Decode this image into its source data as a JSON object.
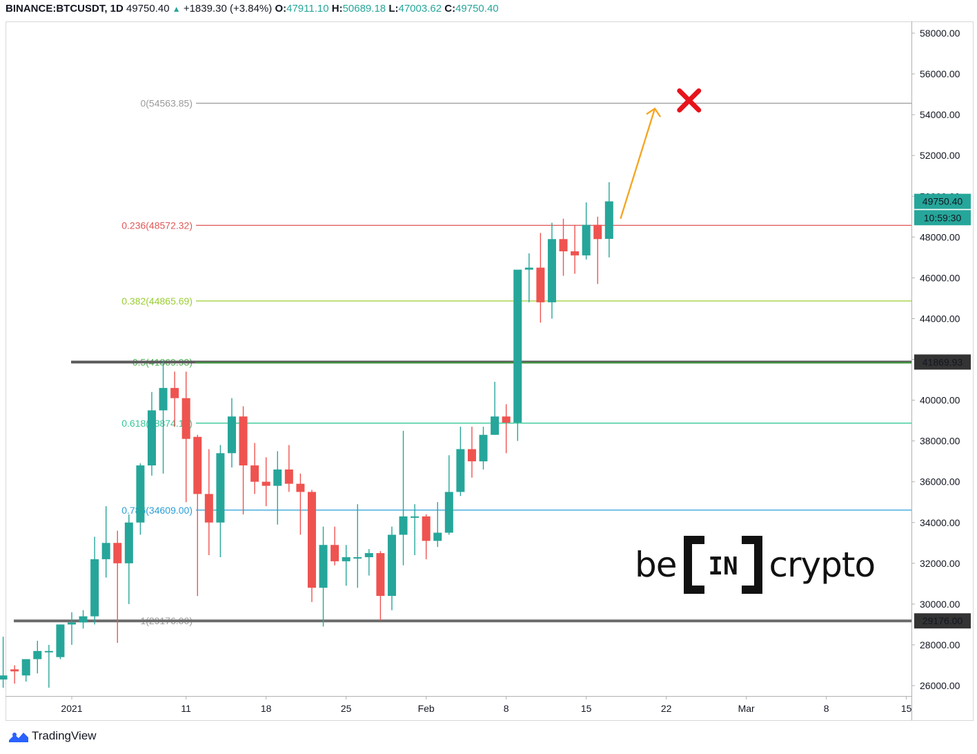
{
  "header": {
    "symbol": "BINANCE:BTCUSDT, 1D",
    "last": "49750.40",
    "change": "+1839.30 (+3.84%)",
    "o_label": "O:",
    "o": "47911.10",
    "h_label": "H:",
    "h": "50689.18",
    "l_label": "L:",
    "l": "47003.62",
    "c_label": "C:",
    "c": "49750.40"
  },
  "branding": {
    "tradingview": "TradingView",
    "watermark_left": "be",
    "watermark_mid": "IN",
    "watermark_right": "crypto"
  },
  "colors": {
    "up": "#26a69a",
    "down": "#ef5350",
    "arrow": "#f5a623",
    "cross": "#e8131b"
  },
  "chart_data": {
    "type": "candlestick",
    "y_range": [
      25500,
      58600
    ],
    "y_ticks": [
      "58000.00",
      "56000.00",
      "54000.00",
      "52000.00",
      "50000.00",
      "48000.00",
      "46000.00",
      "44000.00",
      "42000.00",
      "40000.00",
      "38000.00",
      "36000.00",
      "34000.00",
      "32000.00",
      "30000.00",
      "28000.00",
      "26000.00"
    ],
    "y_tick_values": [
      58000,
      56000,
      54000,
      52000,
      50000,
      48000,
      46000,
      44000,
      42000,
      40000,
      38000,
      36000,
      34000,
      32000,
      30000,
      28000,
      26000
    ],
    "x_ticks": [
      {
        "label": "2021",
        "day": 1
      },
      {
        "label": "11",
        "day": 11
      },
      {
        "label": "18",
        "day": 18
      },
      {
        "label": "25",
        "day": 25
      },
      {
        "label": "Feb",
        "day": 32
      },
      {
        "label": "8",
        "day": 39
      },
      {
        "label": "15",
        "day": 46
      },
      {
        "label": "22",
        "day": 53
      },
      {
        "label": "Mar",
        "day": 60
      },
      {
        "label": "8",
        "day": 67
      },
      {
        "label": "15",
        "day": 74
      }
    ],
    "x_tick_note": "day index: 1 = 2021-01-01",
    "candles": [
      {
        "d": -5,
        "o": 26300,
        "h": 28400,
        "l": 25900,
        "c": 26500
      },
      {
        "d": -4,
        "o": 26800,
        "h": 27000,
        "l": 26100,
        "c": 26700
      },
      {
        "d": -3,
        "o": 26500,
        "h": 27000,
        "l": 26200,
        "c": 27300
      },
      {
        "d": -2,
        "o": 27300,
        "h": 28200,
        "l": 26600,
        "c": 27700
      },
      {
        "d": -1,
        "o": 27700,
        "h": 28000,
        "l": 25900,
        "c": 27700
      },
      {
        "d": 0,
        "o": 27400,
        "h": 29000,
        "l": 27300,
        "c": 29000
      },
      {
        "d": 1,
        "o": 29000,
        "h": 29600,
        "l": 28000,
        "c": 29100
      },
      {
        "d": 2,
        "o": 29100,
        "h": 29700,
        "l": 28800,
        "c": 29400
      },
      {
        "d": 3,
        "o": 29400,
        "h": 33300,
        "l": 29000,
        "c": 32200
      },
      {
        "d": 4,
        "o": 32200,
        "h": 34800,
        "l": 31300,
        "c": 33000
      },
      {
        "d": 5,
        "o": 33000,
        "h": 33600,
        "l": 28100,
        "c": 32000
      },
      {
        "d": 6,
        "o": 32000,
        "h": 34400,
        "l": 30000,
        "c": 34000
      },
      {
        "d": 7,
        "o": 34000,
        "h": 36900,
        "l": 33400,
        "c": 36800
      },
      {
        "d": 8,
        "o": 36800,
        "h": 40400,
        "l": 36300,
        "c": 39500
      },
      {
        "d": 9,
        "o": 39500,
        "h": 41950,
        "l": 36400,
        "c": 40600
      },
      {
        "d": 10,
        "o": 40600,
        "h": 41400,
        "l": 38700,
        "c": 40100
      },
      {
        "d": 11,
        "o": 40100,
        "h": 41400,
        "l": 35000,
        "c": 38100
      },
      {
        "d": 12,
        "o": 38200,
        "h": 38300,
        "l": 30400,
        "c": 35400
      },
      {
        "d": 13,
        "o": 35400,
        "h": 37600,
        "l": 32400,
        "c": 34000
      },
      {
        "d": 14,
        "o": 34000,
        "h": 37800,
        "l": 32300,
        "c": 37400
      },
      {
        "d": 15,
        "o": 37400,
        "h": 40100,
        "l": 36700,
        "c": 39200
      },
      {
        "d": 16,
        "o": 39200,
        "h": 39700,
        "l": 34400,
        "c": 36800
      },
      {
        "d": 17,
        "o": 36800,
        "h": 37900,
        "l": 35400,
        "c": 36000
      },
      {
        "d": 18,
        "o": 36000,
        "h": 37200,
        "l": 34800,
        "c": 35800
      },
      {
        "d": 19,
        "o": 35800,
        "h": 37500,
        "l": 33900,
        "c": 36600
      },
      {
        "d": 20,
        "o": 36600,
        "h": 37800,
        "l": 35500,
        "c": 35900
      },
      {
        "d": 21,
        "o": 35900,
        "h": 36400,
        "l": 33400,
        "c": 35500
      },
      {
        "d": 22,
        "o": 35500,
        "h": 35600,
        "l": 30100,
        "c": 30800
      },
      {
        "d": 23,
        "o": 30800,
        "h": 33800,
        "l": 28900,
        "c": 32900
      },
      {
        "d": 24,
        "o": 32900,
        "h": 33800,
        "l": 31900,
        "c": 32100
      },
      {
        "d": 25,
        "o": 32100,
        "h": 32900,
        "l": 30900,
        "c": 32300
      },
      {
        "d": 26,
        "o": 32300,
        "h": 34900,
        "l": 30800,
        "c": 32300
      },
      {
        "d": 27,
        "o": 32300,
        "h": 32700,
        "l": 31400,
        "c": 32500
      },
      {
        "d": 28,
        "o": 32500,
        "h": 32600,
        "l": 29200,
        "c": 30400
      },
      {
        "d": 29,
        "o": 30400,
        "h": 33800,
        "l": 29700,
        "c": 33400
      },
      {
        "d": 30,
        "o": 33400,
        "h": 38500,
        "l": 31900,
        "c": 34300
      },
      {
        "d": 31,
        "o": 34300,
        "h": 34900,
        "l": 32400,
        "c": 34300
      },
      {
        "d": 32,
        "o": 34300,
        "h": 34400,
        "l": 32200,
        "c": 33100
      },
      {
        "d": 33,
        "o": 33100,
        "h": 35000,
        "l": 32800,
        "c": 33500
      },
      {
        "d": 34,
        "o": 33500,
        "h": 37300,
        "l": 33400,
        "c": 35500
      },
      {
        "d": 35,
        "o": 35500,
        "h": 38700,
        "l": 35300,
        "c": 37600
      },
      {
        "d": 36,
        "o": 37600,
        "h": 38700,
        "l": 36200,
        "c": 37000
      },
      {
        "d": 37,
        "o": 37000,
        "h": 38700,
        "l": 36600,
        "c": 38300
      },
      {
        "d": 38,
        "o": 38300,
        "h": 40900,
        "l": 38300,
        "c": 39200
      },
      {
        "d": 39,
        "o": 39200,
        "h": 39800,
        "l": 37400,
        "c": 38900
      },
      {
        "d": 40,
        "o": 38900,
        "h": 46200,
        "l": 38000,
        "c": 46400
      },
      {
        "d": 41,
        "o": 46400,
        "h": 47200,
        "l": 44800,
        "c": 46500
      },
      {
        "d": 42,
        "o": 46500,
        "h": 48200,
        "l": 43800,
        "c": 44800
      },
      {
        "d": 43,
        "o": 44800,
        "h": 48700,
        "l": 44000,
        "c": 47900
      },
      {
        "d": 44,
        "o": 47900,
        "h": 48900,
        "l": 46100,
        "c": 47300
      },
      {
        "d": 45,
        "o": 47300,
        "h": 48600,
        "l": 46200,
        "c": 47100
      },
      {
        "d": 46,
        "o": 47100,
        "h": 49700,
        "l": 46900,
        "c": 48600
      },
      {
        "d": 47,
        "o": 48600,
        "h": 49000,
        "l": 45700,
        "c": 47900
      },
      {
        "d": 48,
        "o": 47911.1,
        "h": 50689.18,
        "l": 47003.62,
        "c": 49750.4
      }
    ],
    "fib_levels": [
      {
        "label": "0(54563.85)",
        "value": 54563.85,
        "color": "#9a9a9a"
      },
      {
        "label": "0.236(48572.32)",
        "value": 48572.32,
        "color": "#e05757"
      },
      {
        "label": "0.382(44865.69)",
        "value": 44865.69,
        "color": "#9acd32"
      },
      {
        "label": "0.5(41869.93)",
        "value": 41869.93,
        "color": "#4caf50"
      },
      {
        "label": "0.618(38874.16)",
        "value": 38874.16,
        "color": "#34c796"
      },
      {
        "label": "0.786(34609.00)",
        "value": 34609.0,
        "color": "#2a9fd6"
      },
      {
        "label": "1(29176.00)",
        "value": 29176.0,
        "color": "#9a9a9a"
      }
    ],
    "horizontal_lines": [
      {
        "value": 41869.93,
        "label": "41869.93",
        "color": "#5a5a5a"
      },
      {
        "value": 29176.0,
        "label": "29176.00",
        "color": "#6a6a6a"
      }
    ],
    "price_tags": [
      {
        "label": "49750.40",
        "value": 49750.4,
        "color": "#26a69a"
      },
      {
        "label": "10:59:30",
        "value": 48950,
        "color": "#26a69a"
      }
    ],
    "arrow": {
      "from": {
        "d": 49,
        "v": 48900
      },
      "to": {
        "d": 52,
        "v": 54300
      }
    },
    "cross": {
      "d": 55,
      "v": 54700
    }
  }
}
